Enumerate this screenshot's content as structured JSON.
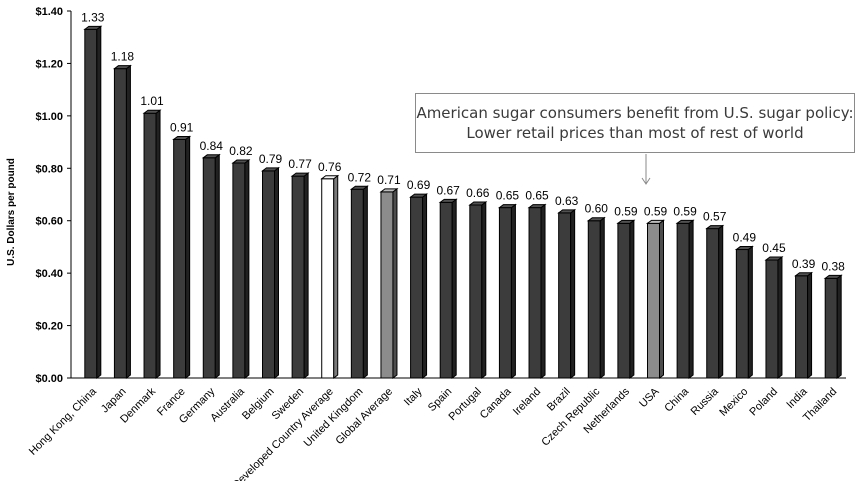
{
  "chart_data": {
    "type": "bar",
    "ylabel": "U.S. Dollars per pound",
    "ylim": [
      0,
      1.4
    ],
    "yticks": [
      "$0.00",
      "$0.20",
      "$0.40",
      "$0.60",
      "$0.80",
      "$1.00",
      "$1.20",
      "$1.40"
    ],
    "grid": false,
    "legend": "none",
    "categories": [
      "Hong Kong, China",
      "Japan",
      "Denmark",
      "France",
      "Germany",
      "Australia",
      "Belgium",
      "Sweden",
      "Developed Country Average",
      "United Kingdom",
      "Global Average",
      "Italy",
      "Spain",
      "Portugal",
      "Canada",
      "Ireland",
      "Brazil",
      "Czech Republic",
      "Netherlands",
      "USA",
      "China",
      "Russia",
      "Mexico",
      "Poland",
      "India",
      "Thailand"
    ],
    "values": [
      1.33,
      1.18,
      1.01,
      0.91,
      0.84,
      0.82,
      0.79,
      0.77,
      0.76,
      0.72,
      0.71,
      0.69,
      0.67,
      0.66,
      0.65,
      0.65,
      0.63,
      0.6,
      0.59,
      0.59,
      0.59,
      0.57,
      0.49,
      0.45,
      0.39,
      0.38
    ],
    "value_labels": [
      "1.33",
      "1.18",
      "1.01",
      "0.91",
      "0.84",
      "0.82",
      "0.79",
      "0.77",
      "0.76",
      "0.72",
      "0.71",
      "0.69",
      "0.67",
      "0.66",
      "0.65",
      "0.65",
      "0.63",
      "0.60",
      "0.59",
      "0.59",
      "0.59",
      "0.57",
      "0.49",
      "0.45",
      "0.39",
      "0.38"
    ],
    "colors": {
      "default": "#3c3c3c",
      "Developed Country Average": "#ffffff",
      "Global Average": "#8c8c8c",
      "USA": "#8c8c8c"
    },
    "annotation": {
      "line1": "American sugar consumers benefit from U.S. sugar policy:",
      "line2": "Lower retail prices than most of rest of world",
      "points_to": "USA"
    }
  }
}
